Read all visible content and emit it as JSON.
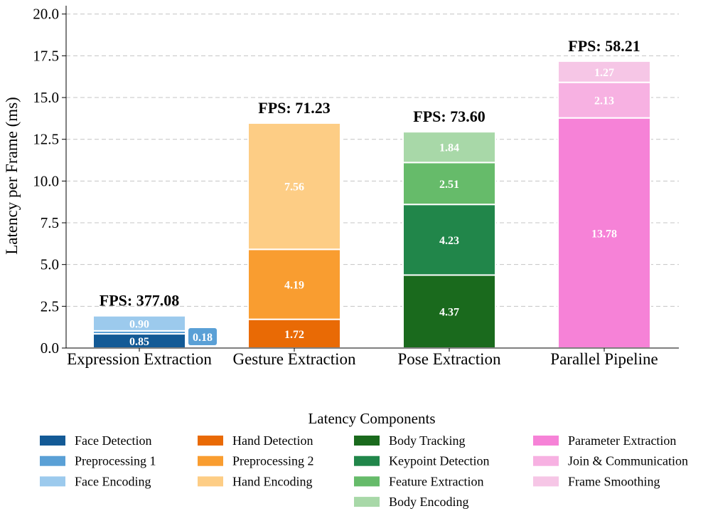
{
  "chart_data": {
    "type": "bar",
    "stacked": true,
    "ylabel": "Latency per Frame (ms)",
    "xlabel": "",
    "ylim": [
      0,
      20.5
    ],
    "yticks": [
      "0.0",
      "2.5",
      "5.0",
      "7.5",
      "10.0",
      "12.5",
      "15.0",
      "17.5",
      "20.0"
    ],
    "grid": "horizontal-dashed",
    "categories": [
      "Expression Extraction",
      "Gesture Extraction",
      "Pose Extraction",
      "Parallel Pipeline"
    ],
    "fps_labels": [
      "FPS: 377.08",
      "FPS: 71.23",
      "FPS: 73.60",
      "FPS: 58.21"
    ],
    "segments": [
      [
        {
          "component": "Face Detection",
          "value": 0.85,
          "label": "0.85",
          "color": "#135a96"
        },
        {
          "component": "Preprocessing 1",
          "value": 0.18,
          "label": "0.18",
          "color": "#5aa0d6"
        },
        {
          "component": "Face Encoding",
          "value": 0.9,
          "label": "0.90",
          "color": "#9ccaed"
        }
      ],
      [
        {
          "component": "Hand Detection",
          "value": 1.72,
          "label": "1.72",
          "color": "#e96a05"
        },
        {
          "component": "Preprocessing 2",
          "value": 4.19,
          "label": "4.19",
          "color": "#f99d30"
        },
        {
          "component": "Hand Encoding",
          "value": 7.56,
          "label": "7.56",
          "color": "#fdcd85"
        }
      ],
      [
        {
          "component": "Body Tracking",
          "value": 4.37,
          "label": "4.37",
          "color": "#1a6a1d"
        },
        {
          "component": "Keypoint Detection",
          "value": 4.23,
          "label": "4.23",
          "color": "#21864a"
        },
        {
          "component": "Feature Extraction",
          "value": 2.51,
          "label": "2.51",
          "color": "#66bb6a"
        },
        {
          "component": "Body Encoding",
          "value": 1.84,
          "label": "1.84",
          "color": "#a8d8a8"
        }
      ],
      [
        {
          "component": "Parameter Extraction",
          "value": 13.78,
          "label": "13.78",
          "color": "#f682d7"
        },
        {
          "component": "Join & Communication",
          "value": 2.13,
          "label": "2.13",
          "color": "#f7b1e2"
        },
        {
          "component": "Frame Smoothing",
          "value": 1.27,
          "label": "1.27",
          "color": "#f6c6e6"
        }
      ]
    ],
    "legend": {
      "title": "Latency Components",
      "placement": "bottom-center",
      "columns": [
        [
          {
            "label": "Face Detection",
            "color": "#135a96"
          },
          {
            "label": "Preprocessing 1",
            "color": "#5aa0d6"
          },
          {
            "label": "Face Encoding",
            "color": "#9ccaed"
          }
        ],
        [
          {
            "label": "Hand Detection",
            "color": "#e96a05"
          },
          {
            "label": "Preprocessing 2",
            "color": "#f99d30"
          },
          {
            "label": "Hand Encoding",
            "color": "#fdcd85"
          }
        ],
        [
          {
            "label": "Body Tracking",
            "color": "#1a6a1d"
          },
          {
            "label": "Keypoint Detection",
            "color": "#21864a"
          },
          {
            "label": "Feature Extraction",
            "color": "#66bb6a"
          },
          {
            "label": "Body Encoding",
            "color": "#a8d8a8"
          }
        ],
        [
          {
            "label": "Parameter Extraction",
            "color": "#f682d7"
          },
          {
            "label": "Join & Communication",
            "color": "#f7b1e2"
          },
          {
            "label": "Frame Smoothing",
            "color": "#f6c6e6"
          }
        ]
      ]
    }
  }
}
